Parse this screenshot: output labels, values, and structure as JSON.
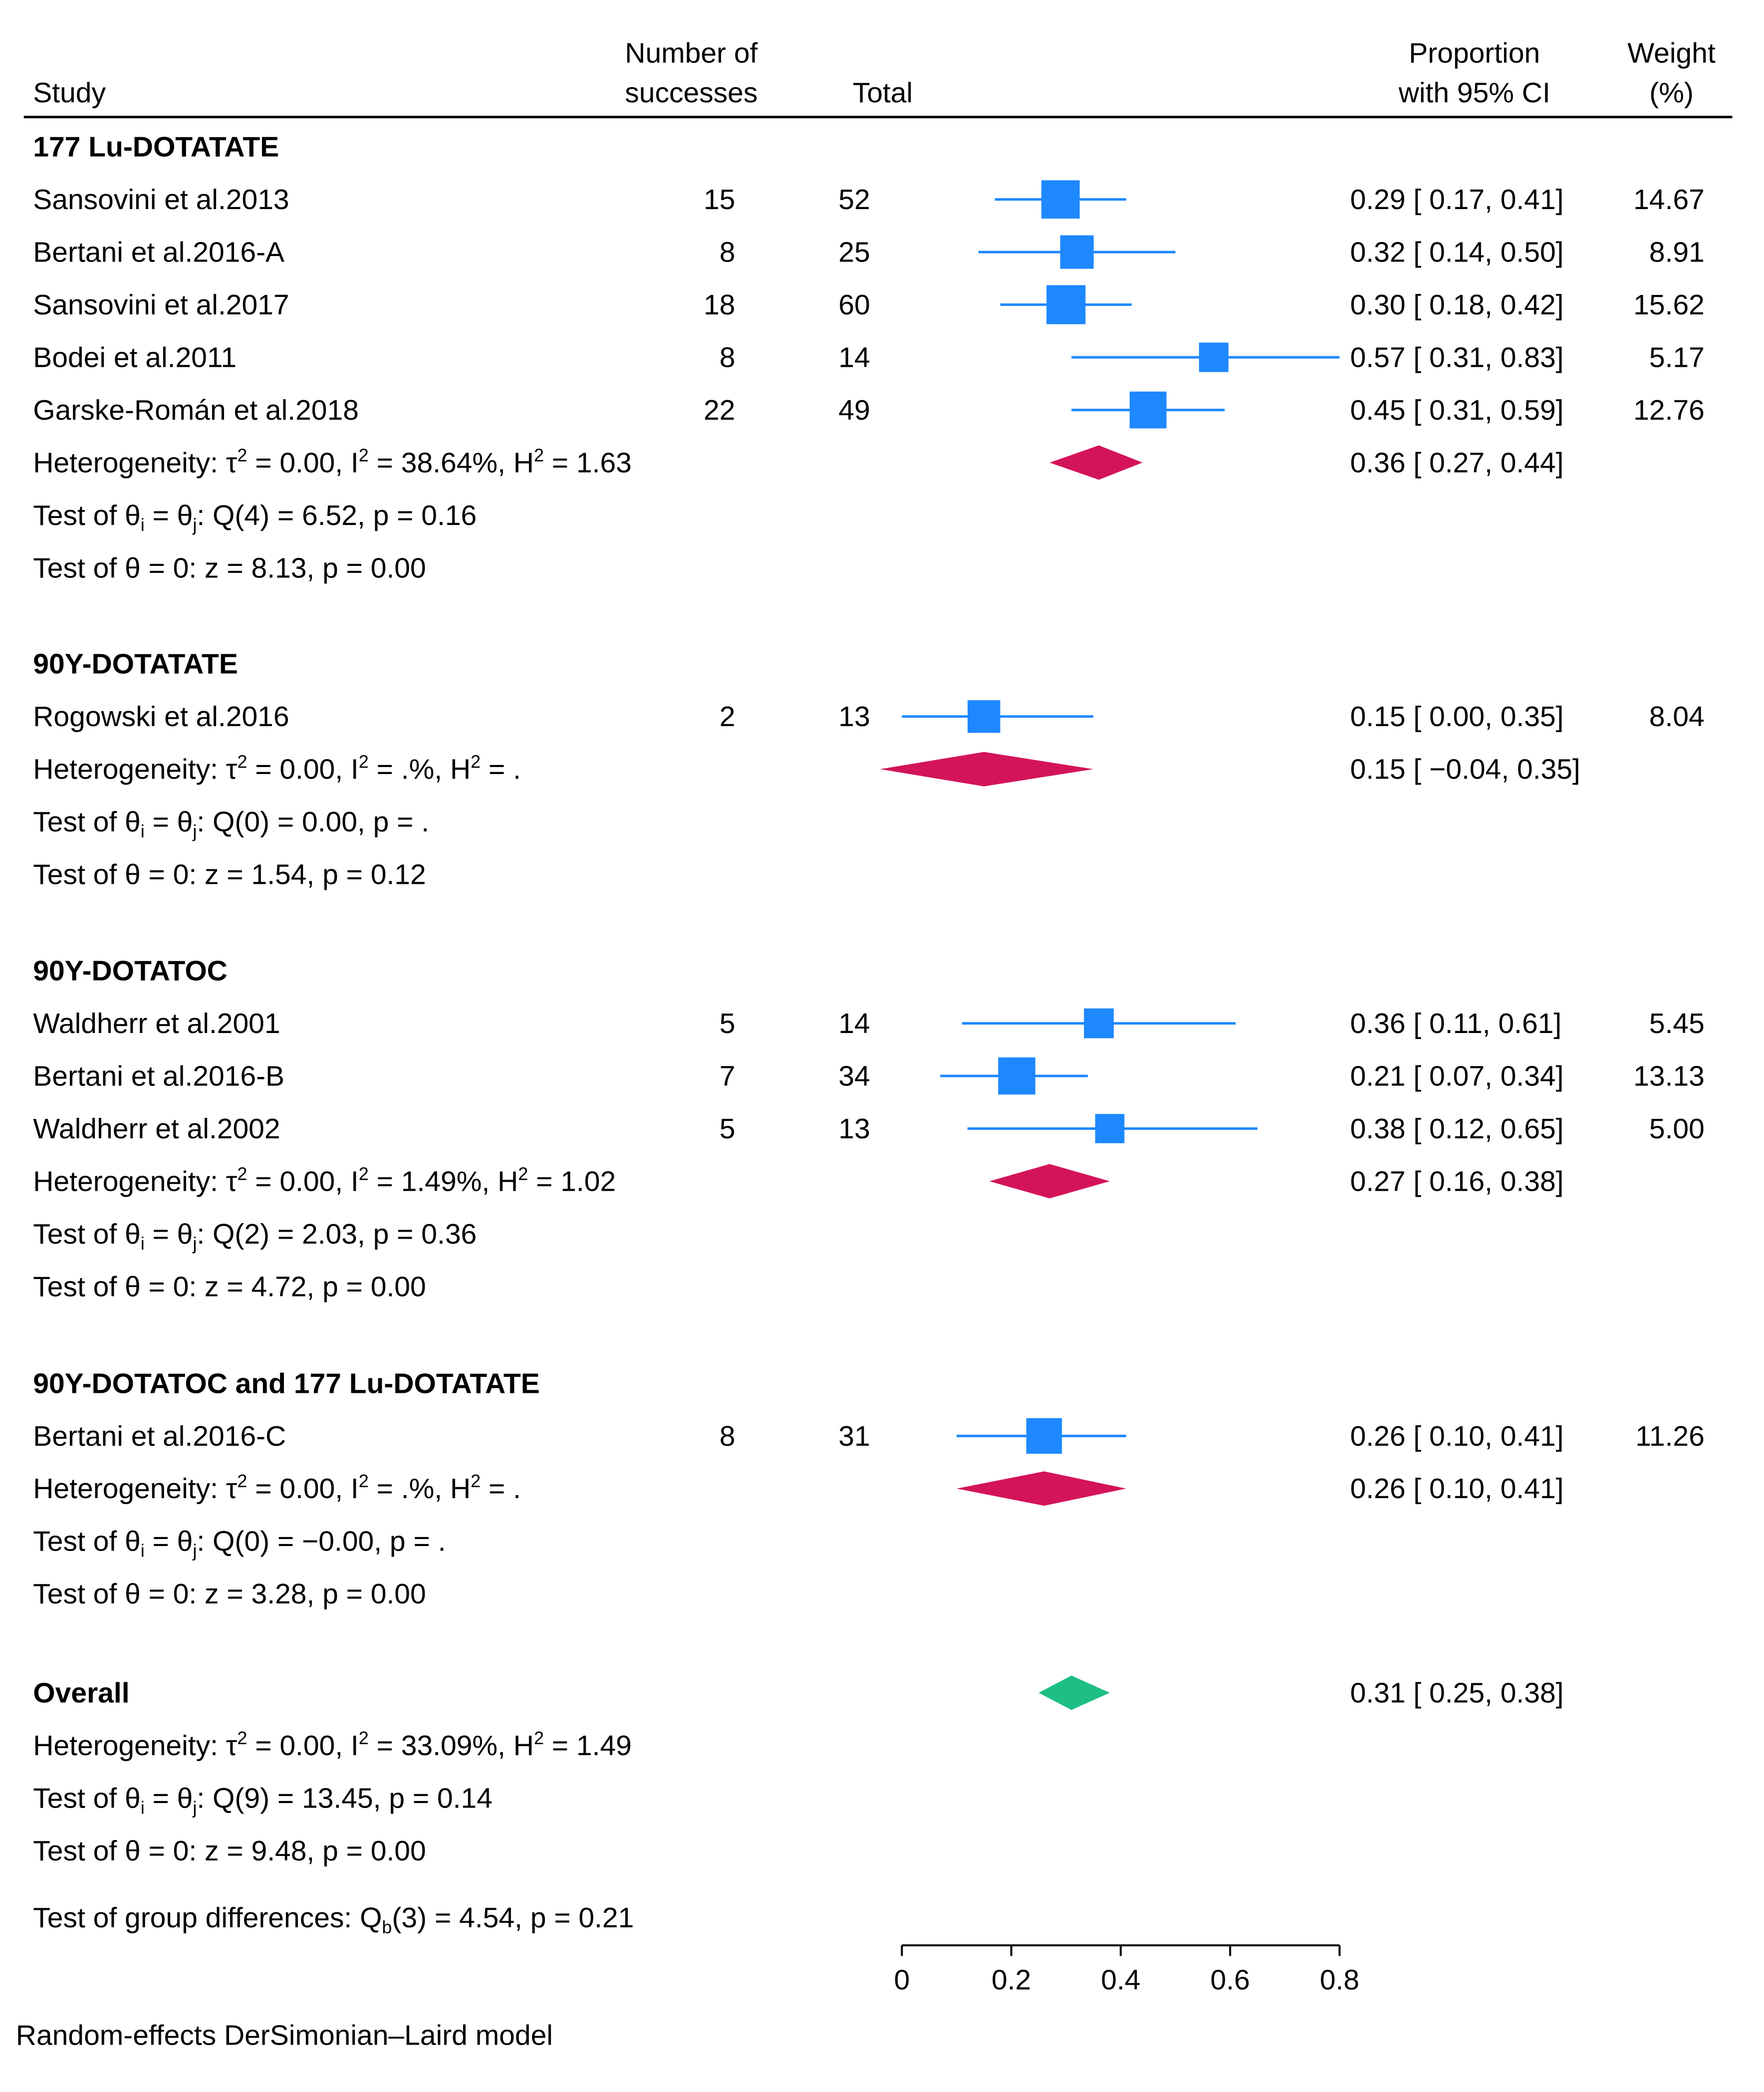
{
  "chart_data": {
    "type": "forest",
    "headers": {
      "study": "Study",
      "successes_line1": "Number of",
      "successes_line2": "successes",
      "total": "Total",
      "proportion_line1": "Proportion",
      "proportion_line2": "with 95% CI",
      "weight_line1": "Weight",
      "weight_line2": "(%)"
    },
    "groups": [
      {
        "name": "177 Lu-DOTATATE",
        "studies": [
          {
            "study": "Sansovini et al.2013",
            "successes": "15",
            "total": "52",
            "est": 0.29,
            "lo": 0.17,
            "hi": 0.41,
            "ci_text": "0.29 [  0.17,  0.41]",
            "weight": 14.67,
            "weight_text": "14.67"
          },
          {
            "study": "Bertani et al.2016-A",
            "successes": "8",
            "total": "25",
            "est": 0.32,
            "lo": 0.14,
            "hi": 0.5,
            "ci_text": "0.32 [  0.14,  0.50]",
            "weight": 8.91,
            "weight_text": "8.91"
          },
          {
            "study": "Sansovini et al.2017",
            "successes": "18",
            "total": "60",
            "est": 0.3,
            "lo": 0.18,
            "hi": 0.42,
            "ci_text": "0.30 [  0.18,  0.42]",
            "weight": 15.62,
            "weight_text": "15.62"
          },
          {
            "study": "Bodei et al.2011",
            "successes": "8",
            "total": "14",
            "est": 0.57,
            "lo": 0.31,
            "hi": 0.83,
            "ci_text": "0.57 [  0.31,  0.83]",
            "weight": 5.17,
            "weight_text": "5.17"
          },
          {
            "study": "Garske-Román et al.2018",
            "successes": "22",
            "total": "49",
            "est": 0.45,
            "lo": 0.31,
            "hi": 0.59,
            "ci_text": "0.45 [  0.31,  0.59]",
            "weight": 12.76,
            "weight_text": "12.76"
          }
        ],
        "pooled": {
          "est": 0.36,
          "lo": 0.27,
          "hi": 0.44,
          "ci_text": "0.36 [  0.27,  0.44]"
        },
        "heterogeneity": {
          "tau2": "0.00",
          "i2": "38.64%",
          "h2": "1.63"
        },
        "q_test": {
          "df": "4",
          "q": "6.52",
          "p": "0.16"
        },
        "z_test": {
          "z": "8.13",
          "p": "0.00"
        }
      },
      {
        "name": "90Y-DOTATATE",
        "studies": [
          {
            "study": "Rogowski et al.2016",
            "successes": "2",
            "total": "13",
            "est": 0.15,
            "lo": 0.0,
            "hi": 0.35,
            "ci_text": "0.15 [  0.00,  0.35]",
            "weight": 8.04,
            "weight_text": "8.04"
          }
        ],
        "pooled": {
          "est": 0.15,
          "lo": -0.04,
          "hi": 0.35,
          "ci_text": "0.15 [ −0.04,  0.35]"
        },
        "heterogeneity": {
          "tau2": "0.00",
          "i2": ".%",
          "h2": "."
        },
        "q_test": {
          "df": "0",
          "q": "0.00",
          "p": "."
        },
        "z_test": {
          "z": "1.54",
          "p": "0.12"
        }
      },
      {
        "name": "90Y-DOTATOC",
        "studies": [
          {
            "study": "Waldherr et al.2001",
            "successes": "5",
            "total": "14",
            "est": 0.36,
            "lo": 0.11,
            "hi": 0.61,
            "ci_text": "0.36 [  0.11,  0.61]",
            "weight": 5.45,
            "weight_text": "5.45"
          },
          {
            "study": "Bertani et al.2016-B",
            "successes": "7",
            "total": "34",
            "est": 0.21,
            "lo": 0.07,
            "hi": 0.34,
            "ci_text": "0.21 [  0.07,  0.34]",
            "weight": 13.13,
            "weight_text": "13.13"
          },
          {
            "study": "Waldherr et al.2002",
            "successes": "5",
            "total": "13",
            "est": 0.38,
            "lo": 0.12,
            "hi": 0.65,
            "ci_text": "0.38 [  0.12,  0.65]",
            "weight": 5.0,
            "weight_text": "5.00"
          }
        ],
        "pooled": {
          "est": 0.27,
          "lo": 0.16,
          "hi": 0.38,
          "ci_text": "0.27 [  0.16,  0.38]"
        },
        "heterogeneity": {
          "tau2": "0.00",
          "i2": "1.49%",
          "h2": "1.02"
        },
        "q_test": {
          "df": "2",
          "q": "2.03",
          "p": "0.36"
        },
        "z_test": {
          "z": "4.72",
          "p": "0.00"
        }
      },
      {
        "name": "90Y-DOTATOC and 177 Lu-DOTATATE",
        "studies": [
          {
            "study": "Bertani et al.2016-C",
            "successes": "8",
            "total": "31",
            "est": 0.26,
            "lo": 0.1,
            "hi": 0.41,
            "ci_text": "0.26 [  0.10,  0.41]",
            "weight": 11.26,
            "weight_text": "11.26"
          }
        ],
        "pooled": {
          "est": 0.26,
          "lo": 0.1,
          "hi": 0.41,
          "ci_text": "0.26 [  0.10,  0.41]"
        },
        "heterogeneity": {
          "tau2": "0.00",
          "i2": ".%",
          "h2": "."
        },
        "q_test": {
          "df": "0",
          "q": "−0.00",
          "p": "."
        },
        "z_test": {
          "z": "3.28",
          "p": "0.00"
        }
      }
    ],
    "overall": {
      "label": "Overall",
      "est": 0.31,
      "lo": 0.25,
      "hi": 0.38,
      "ci_text": "0.31 [  0.25,  0.38]",
      "heterogeneity": {
        "tau2": "0.00",
        "i2": "33.09%",
        "h2": "1.49"
      },
      "q_test": {
        "df": "9",
        "q": "13.45",
        "p": "0.14"
      },
      "z_test": {
        "z": "9.48",
        "p": "0.00"
      }
    },
    "group_difference": {
      "df": "3",
      "q": "4.54",
      "p": "0.21"
    },
    "xaxis": {
      "range": [
        0,
        0.8
      ],
      "ticks": [
        0,
        0.2,
        0.4,
        0.6,
        0.8
      ],
      "tick_labels": [
        "0",
        "0.2",
        "0.4",
        "0.6",
        "0.8"
      ]
    },
    "footnote": "Random-effects DerSimonian–Laird model",
    "colors": {
      "study_marker": "#1e88ff",
      "group_diamond": "#d4145a",
      "overall_diamond": "#1dbf84",
      "text": "#000000"
    }
  }
}
